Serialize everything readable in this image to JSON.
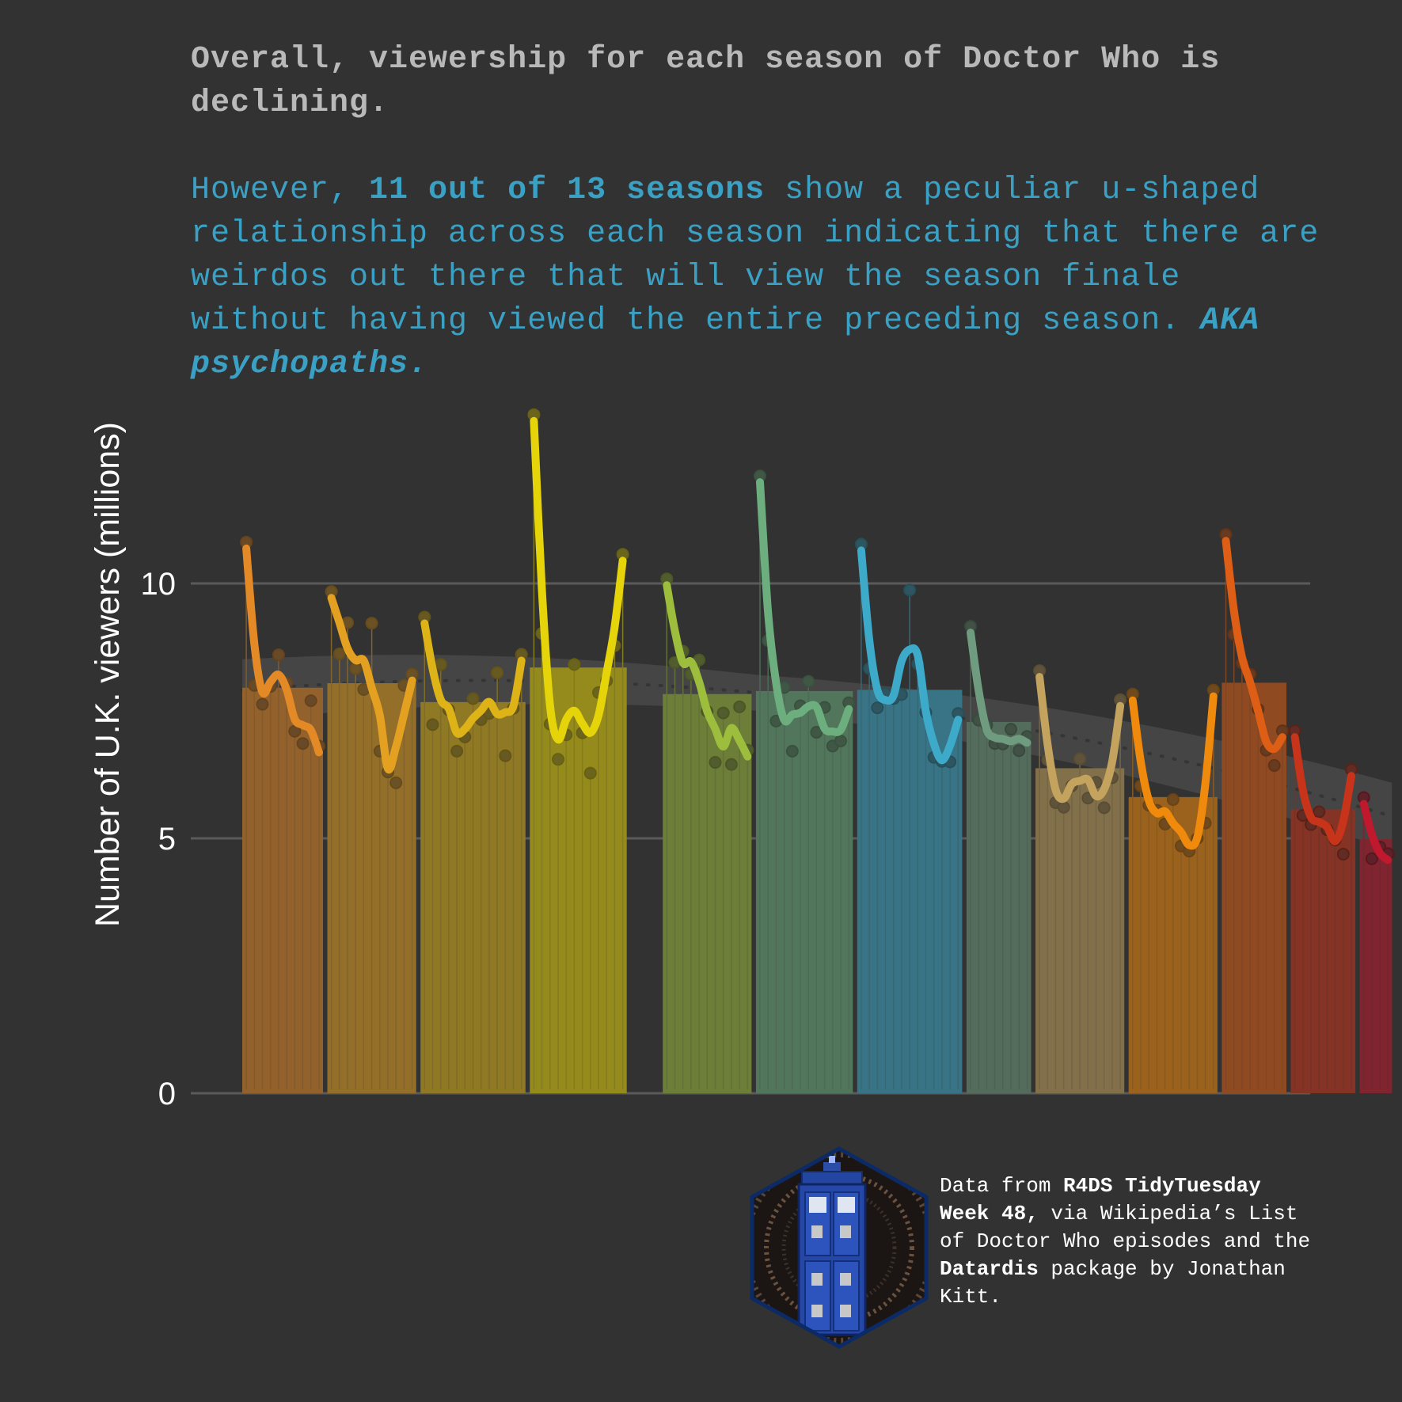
{
  "headline": "Overall, viewership for each season of Doctor Who is declining.",
  "subhead": {
    "part1": "However, ",
    "bold": "11 out of 13 seasons",
    "part2": " show a peculiar u-shaped relationship across each season indicating that there are weirdos out there that will view the season finale without having viewed the entire preceding season. ",
    "bolditalic": "AKA psychopaths."
  },
  "caption": {
    "p1": "Data from ",
    "b1": "R4DS TidyTuesday Week 48,",
    "p2": " via Wikipedia’s List of Doctor Who episodes and the ",
    "b2": "Datardis",
    "p3": " package by Jonathan Kitt."
  },
  "logo": {
    "name": "tardis-hex-logo",
    "digits": "9a23"
  },
  "chart_data": {
    "type": "bar",
    "title": "",
    "xlabel": "",
    "ylabel": "Number of U.K. viewers (millions)",
    "ylim": [
      0,
      13.5
    ],
    "yticks": [
      0,
      5,
      10
    ],
    "grid": true,
    "legend": "none",
    "series": [
      {
        "color": "#E38A27",
        "values": [
          10.81,
          8.0,
          7.63,
          7.98,
          8.6,
          8.05,
          7.1,
          6.86,
          7.7,
          6.81
        ]
      },
      {
        "color": "#E4A121",
        "values": [
          9.84,
          8.62,
          9.23,
          8.33,
          7.92,
          9.22,
          6.71,
          6.3,
          6.09,
          8.0,
          8.22
        ]
      },
      {
        "color": "#DDB318",
        "values": [
          9.34,
          7.23,
          8.41,
          7.52,
          6.71,
          6.99,
          7.74,
          7.33,
          7.45,
          8.25,
          6.62,
          7.55,
          8.61
        ]
      },
      {
        "color": "#E6D40A",
        "values": [
          13.31,
          9.02,
          7.24,
          6.55,
          7.03,
          8.41,
          7.07,
          6.28,
          7.86,
          8.09,
          8.78,
          10.57
        ]
      },
      {
        "color": "#9DBD3C",
        "values": [
          10.09,
          8.45,
          8.67,
          8.22,
          8.5,
          7.49,
          6.49,
          7.46,
          6.45,
          7.58,
          6.73
        ]
      },
      {
        "color": "#6DAE7E",
        "values": [
          12.11,
          8.88,
          7.3,
          7.96,
          6.71,
          7.6,
          8.08,
          7.08,
          7.57,
          6.81,
          6.91,
          7.66
        ]
      },
      {
        "color": "#3DAAC9",
        "values": [
          10.77,
          8.33,
          7.56,
          7.84,
          7.74,
          7.82,
          9.87,
          8.42,
          7.47,
          6.59,
          6.51,
          6.5,
          7.45
        ]
      },
      {
        "color": "#6F9C7E",
        "values": [
          9.16,
          7.32,
          7.22,
          6.86,
          6.85,
          7.14,
          6.72,
          7.0
        ]
      },
      {
        "color": "#C4A35E",
        "values": [
          8.29,
          6.54,
          5.7,
          5.61,
          6.03,
          6.56,
          5.79,
          6.1,
          5.6,
          6.19,
          7.72
        ]
      },
      {
        "color": "#F08A0C",
        "values": [
          7.83,
          6.03,
          5.65,
          5.55,
          5.28,
          5.76,
          4.85,
          4.75,
          5.0,
          5.3,
          7.91
        ]
      },
      {
        "color": "#DD5E14",
        "values": [
          10.96,
          9.0,
          8.44,
          8.22,
          7.53,
          6.73,
          6.43,
          7.11
        ]
      },
      {
        "color": "#C83419",
        "values": [
          7.11,
          5.45,
          5.27,
          5.52,
          5.17,
          4.97,
          4.69,
          6.35
        ]
      },
      {
        "color": "#C0182C",
        "values": [
          5.8,
          4.6,
          4.83,
          4.7
        ]
      }
    ]
  }
}
